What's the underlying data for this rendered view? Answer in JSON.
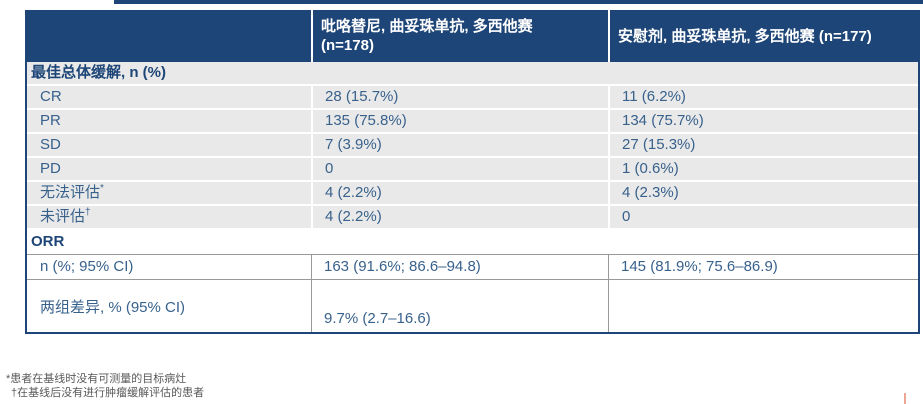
{
  "colors": {
    "header_bg": "#1D4577",
    "section_text": "#1D4577",
    "value_text": "#38618C",
    "row_bg": "#E9E9E9",
    "border_gray": "#999999",
    "footnote_text": "#595959",
    "corner_tick": "#EBA793"
  },
  "table": {
    "columns": [
      {
        "label": ""
      },
      {
        "line1": "吡咯替尼, 曲妥珠单抗, 多西他赛",
        "line2": "(n=178)"
      },
      {
        "line1": "安慰剂, 曲妥珠单抗, 多西他赛 (n=177)",
        "line2": ""
      }
    ],
    "section1": {
      "title": "最佳总体缓解, n (%)",
      "rows": [
        {
          "label": "CR",
          "v1": "28 (15.7%)",
          "v2": "11 (6.2%)"
        },
        {
          "label": "PR",
          "v1": "135 (75.8%)",
          "v2": "134 (75.7%)"
        },
        {
          "label": "SD",
          "v1": "7 (3.9%)",
          "v2": "27 (15.3%)"
        },
        {
          "label": "PD",
          "v1": "0",
          "v2": "1 (0.6%)"
        },
        {
          "label": "无法评估",
          "sup": "*",
          "v1": "4 (2.2%)",
          "v2": "4 (2.3%)"
        },
        {
          "label": "未评估",
          "sup": "†",
          "v1": "4 (2.2%)",
          "v2": "0"
        }
      ]
    },
    "section2": {
      "title": "ORR",
      "rows": [
        {
          "label": "n (%; 95% CI)",
          "v1": "163 (91.6%; 86.6–94.8)",
          "v2": "145 (81.9%; 75.6–86.9)"
        },
        {
          "label": "两组差异, % (95% CI)",
          "v1": "9.7% (2.7–16.6)",
          "v2": ""
        }
      ]
    }
  },
  "footnotes": [
    {
      "text": "*患者在基线时没有可测量的目标病灶"
    },
    {
      "text": "†在基线后没有进行肿瘤缓解评估的患者"
    }
  ]
}
